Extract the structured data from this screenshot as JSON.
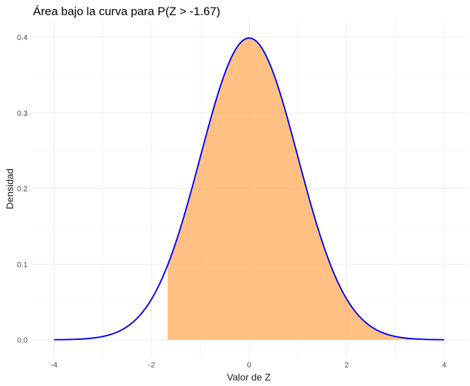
{
  "chart_data": {
    "type": "area",
    "title": "Área bajo la curva para P(Z > -1.67)",
    "xlabel": "Valor de Z",
    "ylabel": "Densidad",
    "xlim": [
      -4,
      4
    ],
    "ylim": [
      0,
      0.4
    ],
    "x_ticks": [
      -4,
      -2,
      0,
      2,
      4
    ],
    "x_tick_labels": [
      "-4",
      "-2",
      "0",
      "2",
      "4"
    ],
    "y_ticks": [
      0.0,
      0.1,
      0.2,
      0.3,
      0.4
    ],
    "y_tick_labels": [
      "0.0",
      "0.1",
      "0.2",
      "0.3",
      "0.4"
    ],
    "grid": true,
    "legend": "none",
    "series": [
      {
        "x": [
          -4.0,
          -3.5,
          -3.0,
          -2.5,
          -2.0,
          -1.67,
          -1.5,
          -1.0,
          -0.5,
          0.0,
          0.5,
          1.0,
          1.5,
          2.0,
          2.5,
          3.0,
          3.5,
          4.0
        ],
        "y": [
          0.0001,
          0.0009,
          0.0044,
          0.0175,
          0.054,
          0.0989,
          0.1295,
          0.242,
          0.3521,
          0.3989,
          0.3521,
          0.242,
          0.1295,
          0.054,
          0.0175,
          0.0044,
          0.0009,
          0.0001
        ]
      }
    ],
    "shaded_region": {
      "from": -1.67,
      "to": 4
    },
    "colors": {
      "curve": "#0000ff",
      "fill": "#ffa54f",
      "grid": "#ebebeb"
    }
  }
}
